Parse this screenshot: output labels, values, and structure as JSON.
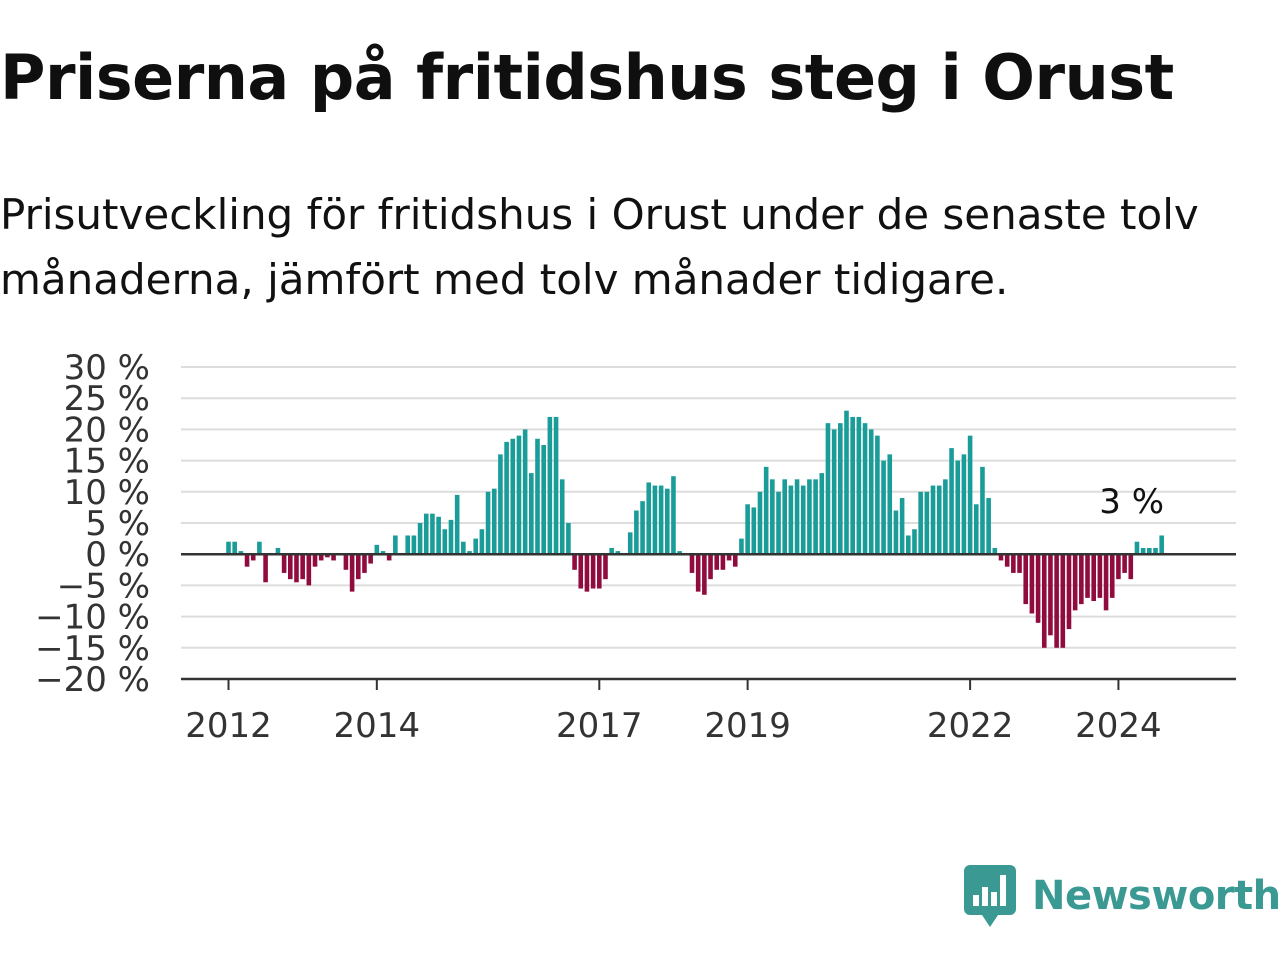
{
  "title": "Priserna på fritidshus steg i Orust",
  "subtitle": "Prisutveckling för fritidshus i Orust under de senaste tolv månaderna, jämfört med tolv månader tidigare.",
  "logo": {
    "text": "Newsworthy",
    "icon": "newsworthy-bar-chart-icon"
  },
  "colors": {
    "positive": "#1a9c98",
    "negative": "#900c3f",
    "grid": "#dddddd",
    "axis": "#333333",
    "brand": "#3a9a93"
  },
  "chart_data": {
    "type": "bar",
    "title": "Priserna på fritidshus steg i Orust",
    "x_start": "2012-01",
    "x_step": "month",
    "x_ticks": [
      "2012",
      "2014",
      "2017",
      "2019",
      "2022",
      "2024"
    ],
    "y_ticks": [
      "30 %",
      "25 %",
      "20 %",
      "15 %",
      "10 %",
      "5 %",
      "0 %",
      "−5 %",
      "−10 %",
      "−15 %",
      "−20 %"
    ],
    "ylim": [
      -20,
      30
    ],
    "grid": true,
    "annotation": "3 %",
    "values": [
      2,
      2,
      0.5,
      -2,
      -1,
      2,
      -4.5,
      0,
      1,
      -3,
      -4,
      -4.5,
      -4,
      -5,
      -2,
      -1,
      -0.5,
      -1,
      0,
      -2.5,
      -6,
      -4,
      -3,
      -1.5,
      1.5,
      0.5,
      -1,
      3,
      0,
      3,
      3,
      5,
      6.5,
      6.5,
      6,
      4,
      5.5,
      9.5,
      2,
      0.5,
      2.5,
      4,
      10,
      10.5,
      16,
      18,
      18.5,
      19,
      20,
      13,
      18.5,
      17.5,
      22,
      22,
      12,
      5,
      -2.5,
      -5.5,
      -6,
      -5.5,
      -5.5,
      -4,
      1,
      0.5,
      0,
      3.5,
      7,
      8.5,
      11.5,
      11,
      11,
      10.5,
      12.5,
      0.5,
      0,
      -3,
      -6,
      -6.5,
      -4,
      -2.5,
      -2.5,
      -1,
      -2,
      2.5,
      8,
      7.5,
      10,
      14,
      12,
      10,
      12,
      11,
      12,
      11,
      12,
      12,
      13,
      21,
      20,
      21,
      23,
      22,
      22,
      21,
      20,
      19,
      15,
      16,
      7,
      9,
      3,
      4,
      10,
      10,
      11,
      11,
      12,
      17,
      15,
      16,
      19,
      8,
      14,
      9,
      1,
      -1,
      -2,
      -3,
      -3,
      -8,
      -9.5,
      -11,
      -15,
      -13,
      -15,
      -15,
      -12,
      -9,
      -8,
      -7,
      -7.5,
      -7,
      -9,
      -7,
      -4,
      -3,
      -4,
      2,
      1,
      1,
      1,
      3
    ]
  }
}
